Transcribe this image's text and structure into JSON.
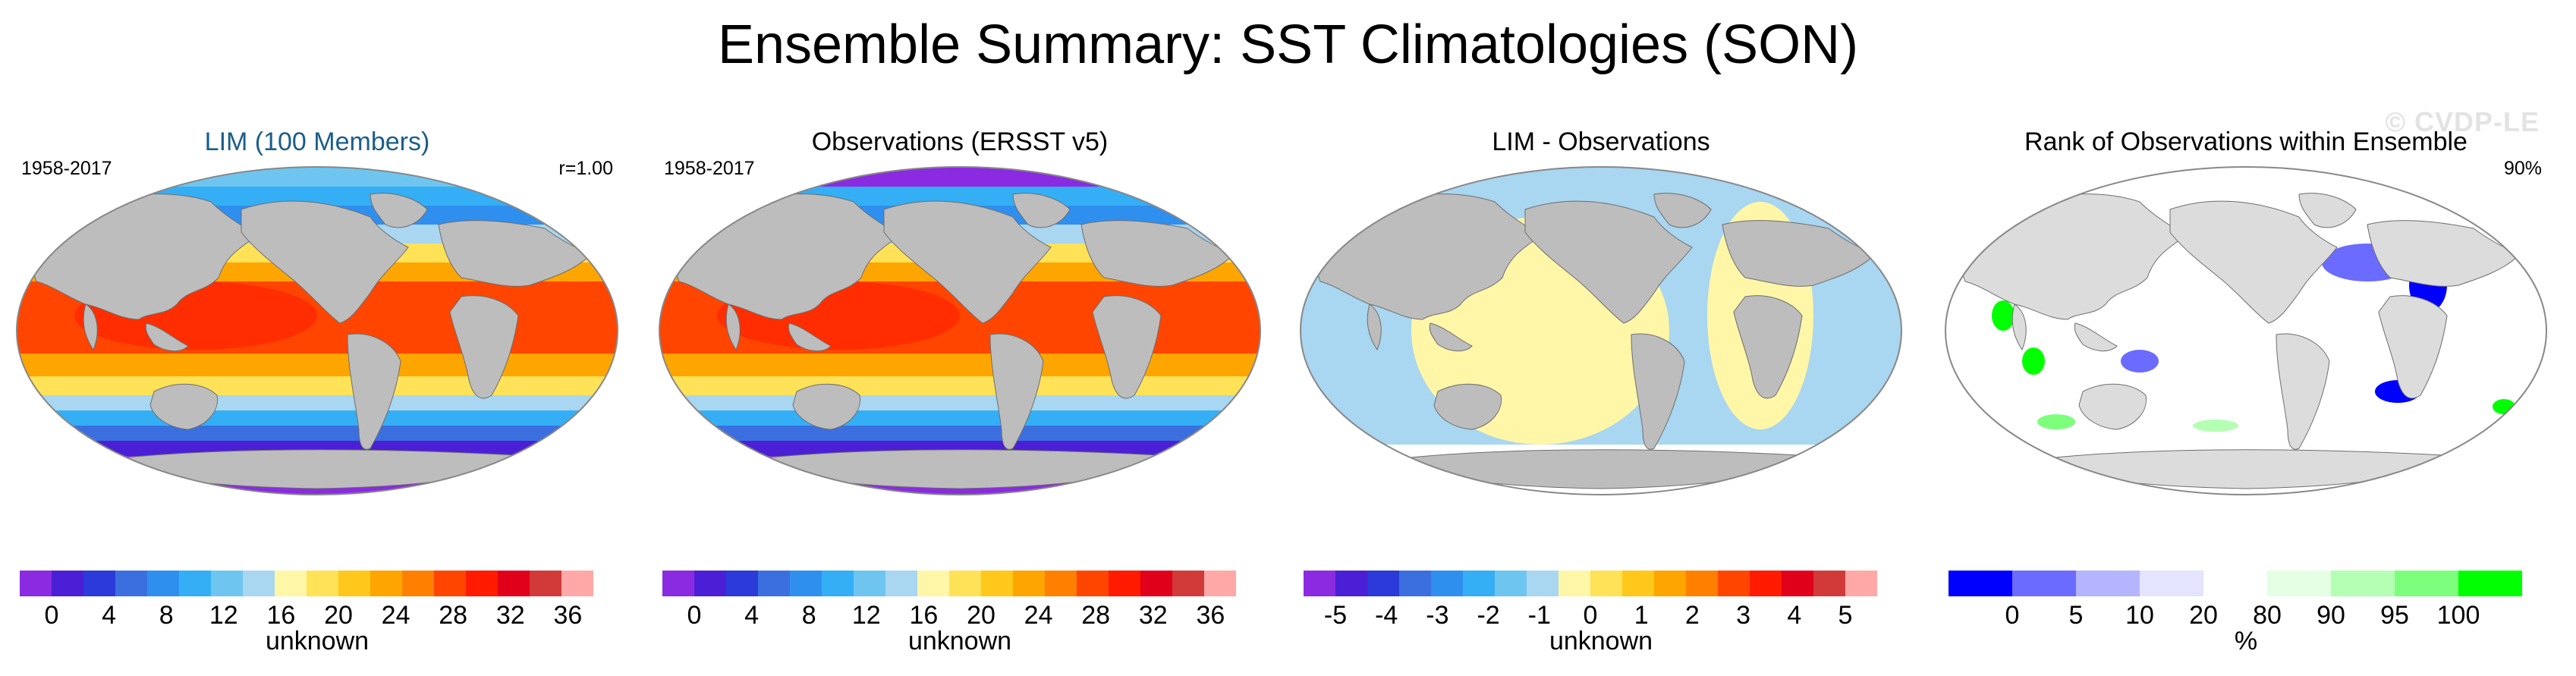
{
  "title": "Ensemble Summary: SST Climatologies (SON)",
  "watermark": "© CVDP-LE",
  "colors": {
    "land": "#bdbdbd",
    "land_light": "#dcdcdc",
    "rank_ocean": "#ffffff",
    "outline": "#888888"
  },
  "panels": [
    {
      "title": "LIM (100 Members)",
      "left_note": "1958-2017",
      "right_note": "r=1.00",
      "unit_label": "unknown",
      "tick_labels": [
        "0",
        "4",
        "8",
        "12",
        "16",
        "20",
        "24",
        "28",
        "32",
        "36"
      ],
      "colorbar": [
        "#8a2be2",
        "#4b1fd6",
        "#2b3ad8",
        "#3b6fe0",
        "#2f8fef",
        "#34aef5",
        "#6ec6f0",
        "#a9d6f0",
        "#fff6a8",
        "#ffe257",
        "#ffc81a",
        "#ffa500",
        "#ff7f00",
        "#ff4500",
        "#ff1a00",
        "#e0001a",
        "#d23a3a",
        "#ffa8a8"
      ],
      "map_style": "sst"
    },
    {
      "title": "Observations (ERSST v5)",
      "left_note": "1958-2017",
      "right_note": "",
      "unit_label": "unknown",
      "tick_labels": [
        "0",
        "4",
        "8",
        "12",
        "16",
        "20",
        "24",
        "28",
        "32",
        "36"
      ],
      "colorbar": [
        "#8a2be2",
        "#4b1fd6",
        "#2b3ad8",
        "#3b6fe0",
        "#2f8fef",
        "#34aef5",
        "#6ec6f0",
        "#a9d6f0",
        "#fff6a8",
        "#ffe257",
        "#ffc81a",
        "#ffa500",
        "#ff7f00",
        "#ff4500",
        "#ff1a00",
        "#e0001a",
        "#d23a3a",
        "#ffa8a8"
      ],
      "map_style": "obs"
    },
    {
      "title": "LIM - Observations",
      "left_note": "",
      "right_note": "",
      "unit_label": "unknown",
      "tick_labels": [
        "-5",
        "-4",
        "-3",
        "-2",
        "-1",
        "0",
        "1",
        "2",
        "3",
        "4",
        "5"
      ],
      "colorbar": [
        "#8a2be2",
        "#4b1fd6",
        "#2b3ad8",
        "#3b6fe0",
        "#2f8fef",
        "#34aef5",
        "#6ec6f0",
        "#a9d6f0",
        "#fff6a8",
        "#ffe257",
        "#ffc81a",
        "#ffa500",
        "#ff7f00",
        "#ff4500",
        "#ff1a00",
        "#e0001a",
        "#d23a3a",
        "#ffa8a8"
      ],
      "map_style": "diff"
    },
    {
      "title": "Rank of Observations within Ensemble",
      "left_note": "",
      "right_note": "90%",
      "unit_label": "%",
      "tick_labels": [
        "0",
        "5",
        "10",
        "20",
        "80",
        "90",
        "95",
        "100"
      ],
      "colorbar": [
        "#0000ff",
        "#6b6bff",
        "#b4b4ff",
        "#e4e4ff",
        "#ffffff",
        "#e4ffe4",
        "#b4ffb4",
        "#7dff7d",
        "#00ff00"
      ],
      "map_style": "rank"
    }
  ]
}
